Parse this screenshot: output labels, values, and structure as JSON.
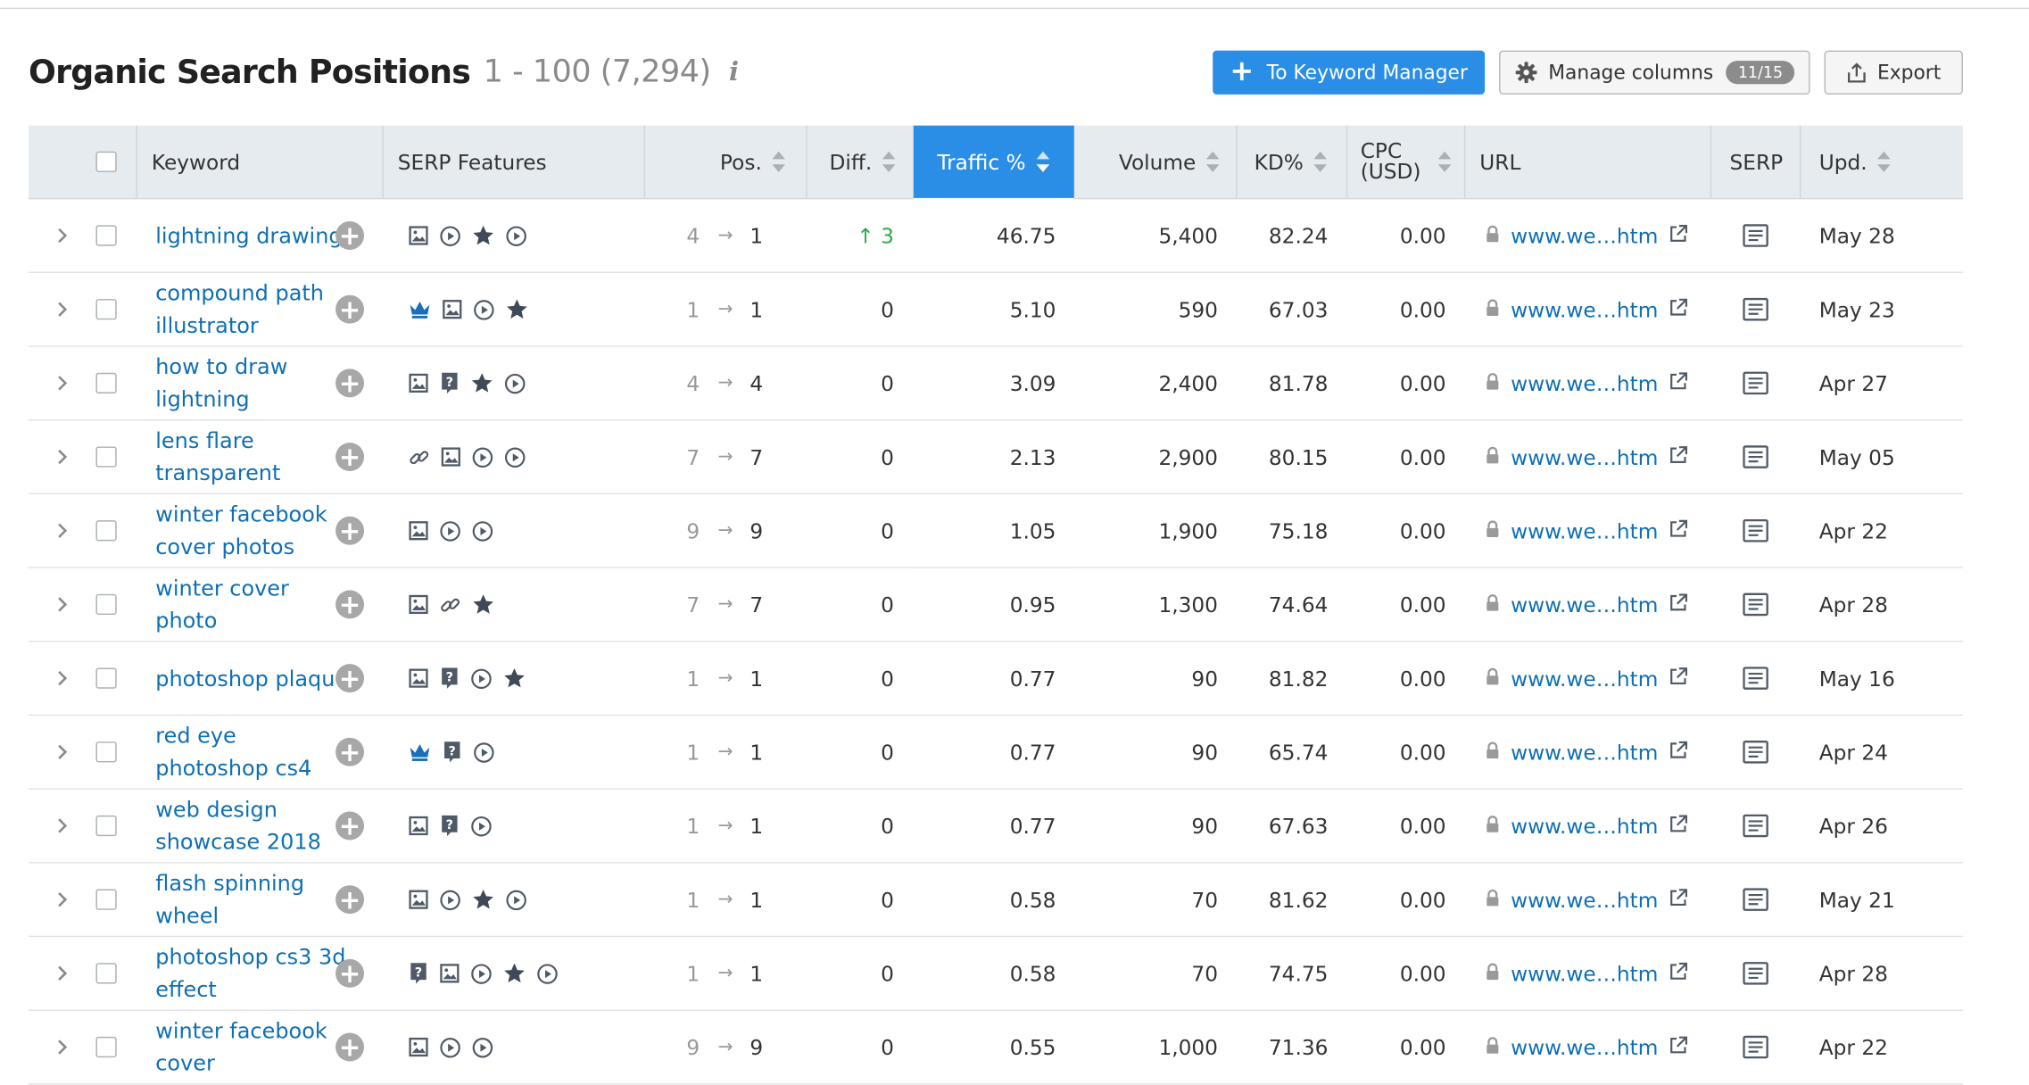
{
  "header": {
    "title": "Organic Search Positions",
    "range": "1 - 100 (7,294)",
    "info": "i"
  },
  "toolbar": {
    "keyword_manager_label": "To Keyword Manager",
    "manage_columns_label": "Manage columns",
    "manage_columns_count": "11/15",
    "export_label": "Export"
  },
  "columns": {
    "keyword": "Keyword",
    "serp_features": "SERP Features",
    "pos": "Pos.",
    "diff": "Diff.",
    "traffic": "Traffic %",
    "volume": "Volume",
    "kd": "KD%",
    "cpc_line1": "CPC",
    "cpc_line2": "(USD)",
    "url": "URL",
    "serp": "SERP",
    "upd": "Upd."
  },
  "colors": {
    "accent": "#2a8ee6",
    "link": "#0f6fb3",
    "positive": "#2ea84c",
    "header_bg": "#e6ebf0"
  },
  "rows": [
    {
      "kw1": "lightning drawing",
      "kw2": "",
      "features": [
        "image",
        "video",
        "star",
        "video"
      ],
      "pos_prev": "4",
      "pos_cur": "1",
      "diff": "↑ 3",
      "diff_up": true,
      "traffic": "46.75",
      "volume": "5,400",
      "kd": "82.24",
      "cpc": "0.00",
      "url": "www.we…htm",
      "upd": "May 28"
    },
    {
      "kw1": "compound path",
      "kw2": "illustrator",
      "features": [
        "crown",
        "image",
        "video",
        "star"
      ],
      "pos_prev": "1",
      "pos_cur": "1",
      "diff": "0",
      "diff_up": false,
      "traffic": "5.10",
      "volume": "590",
      "kd": "67.03",
      "cpc": "0.00",
      "url": "www.we…htm",
      "upd": "May 23"
    },
    {
      "kw1": "how to draw",
      "kw2": "lightning",
      "features": [
        "image",
        "question",
        "star",
        "video"
      ],
      "pos_prev": "4",
      "pos_cur": "4",
      "diff": "0",
      "diff_up": false,
      "traffic": "3.09",
      "volume": "2,400",
      "kd": "81.78",
      "cpc": "0.00",
      "url": "www.we…htm",
      "upd": "Apr 27"
    },
    {
      "kw1": "lens flare",
      "kw2": "transparent",
      "features": [
        "link",
        "image",
        "video",
        "video"
      ],
      "pos_prev": "7",
      "pos_cur": "7",
      "diff": "0",
      "diff_up": false,
      "traffic": "2.13",
      "volume": "2,900",
      "kd": "80.15",
      "cpc": "0.00",
      "url": "www.we…htm",
      "upd": "May 05"
    },
    {
      "kw1": "winter facebook",
      "kw2": "cover photos",
      "features": [
        "image",
        "video",
        "video"
      ],
      "pos_prev": "9",
      "pos_cur": "9",
      "diff": "0",
      "diff_up": false,
      "traffic": "1.05",
      "volume": "1,900",
      "kd": "75.18",
      "cpc": "0.00",
      "url": "www.we…htm",
      "upd": "Apr 22"
    },
    {
      "kw1": "winter cover",
      "kw2": "photo",
      "features": [
        "image",
        "link",
        "star"
      ],
      "pos_prev": "7",
      "pos_cur": "7",
      "diff": "0",
      "diff_up": false,
      "traffic": "0.95",
      "volume": "1,300",
      "kd": "74.64",
      "cpc": "0.00",
      "url": "www.we…htm",
      "upd": "Apr 28"
    },
    {
      "kw1": "photoshop plaque",
      "kw2": "",
      "features": [
        "image",
        "question",
        "video",
        "star"
      ],
      "pos_prev": "1",
      "pos_cur": "1",
      "diff": "0",
      "diff_up": false,
      "traffic": "0.77",
      "volume": "90",
      "kd": "81.82",
      "cpc": "0.00",
      "url": "www.we…htm",
      "upd": "May 16"
    },
    {
      "kw1": "red eye",
      "kw2": "photoshop cs4",
      "features": [
        "crown",
        "question",
        "video"
      ],
      "pos_prev": "1",
      "pos_cur": "1",
      "diff": "0",
      "diff_up": false,
      "traffic": "0.77",
      "volume": "90",
      "kd": "65.74",
      "cpc": "0.00",
      "url": "www.we…htm",
      "upd": "Apr 24"
    },
    {
      "kw1": "web design",
      "kw2": "showcase 2018",
      "features": [
        "image",
        "question",
        "video"
      ],
      "pos_prev": "1",
      "pos_cur": "1",
      "diff": "0",
      "diff_up": false,
      "traffic": "0.77",
      "volume": "90",
      "kd": "67.63",
      "cpc": "0.00",
      "url": "www.we…htm",
      "upd": "Apr 26"
    },
    {
      "kw1": "flash spinning",
      "kw2": "wheel",
      "features": [
        "image",
        "video",
        "star",
        "video"
      ],
      "pos_prev": "1",
      "pos_cur": "1",
      "diff": "0",
      "diff_up": false,
      "traffic": "0.58",
      "volume": "70",
      "kd": "81.62",
      "cpc": "0.00",
      "url": "www.we…htm",
      "upd": "May 21"
    },
    {
      "kw1": "photoshop cs3 3d",
      "kw2": "effect",
      "features": [
        "question",
        "image",
        "video",
        "star",
        "video"
      ],
      "pos_prev": "1",
      "pos_cur": "1",
      "diff": "0",
      "diff_up": false,
      "traffic": "0.58",
      "volume": "70",
      "kd": "74.75",
      "cpc": "0.00",
      "url": "www.we…htm",
      "upd": "Apr 28"
    },
    {
      "kw1": "winter facebook",
      "kw2": "cover",
      "features": [
        "image",
        "video",
        "video"
      ],
      "pos_prev": "9",
      "pos_cur": "9",
      "diff": "0",
      "diff_up": false,
      "traffic": "0.55",
      "volume": "1,000",
      "kd": "71.36",
      "cpc": "0.00",
      "url": "www.we…htm",
      "upd": "Apr 22"
    }
  ]
}
